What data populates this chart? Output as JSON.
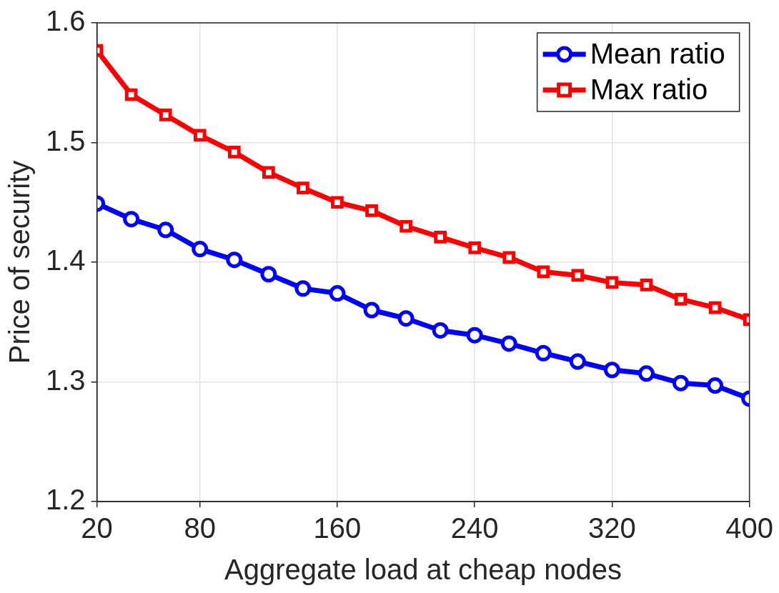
{
  "chart_data": {
    "type": "line",
    "xlabel": "Aggregate load at cheap nodes",
    "ylabel": "Price of security",
    "x": [
      20,
      40,
      60,
      80,
      100,
      120,
      140,
      160,
      180,
      200,
      220,
      240,
      260,
      280,
      300,
      320,
      340,
      360,
      380,
      400
    ],
    "series": [
      {
        "name": "Mean ratio",
        "color": "#0000ff",
        "marker": "circle",
        "values": [
          1.449,
          1.436,
          1.427,
          1.411,
          1.402,
          1.39,
          1.378,
          1.374,
          1.36,
          1.353,
          1.343,
          1.339,
          1.332,
          1.324,
          1.317,
          1.31,
          1.307,
          1.299,
          1.297,
          1.286
        ]
      },
      {
        "name": "Max ratio",
        "color": "#ff0000",
        "marker": "square",
        "values": [
          1.577,
          1.54,
          1.523,
          1.506,
          1.492,
          1.475,
          1.462,
          1.45,
          1.443,
          1.43,
          1.421,
          1.412,
          1.404,
          1.392,
          1.389,
          1.383,
          1.381,
          1.369,
          1.362,
          1.352
        ]
      }
    ],
    "xlim": [
      20,
      400
    ],
    "xticks": [
      20,
      80,
      160,
      240,
      320,
      400
    ],
    "ylim": [
      1.2,
      1.6
    ],
    "yticks": [
      1.2,
      1.3,
      1.4,
      1.5,
      1.6
    ],
    "grid": true,
    "legend": "top right",
    "line_style": "solid"
  }
}
